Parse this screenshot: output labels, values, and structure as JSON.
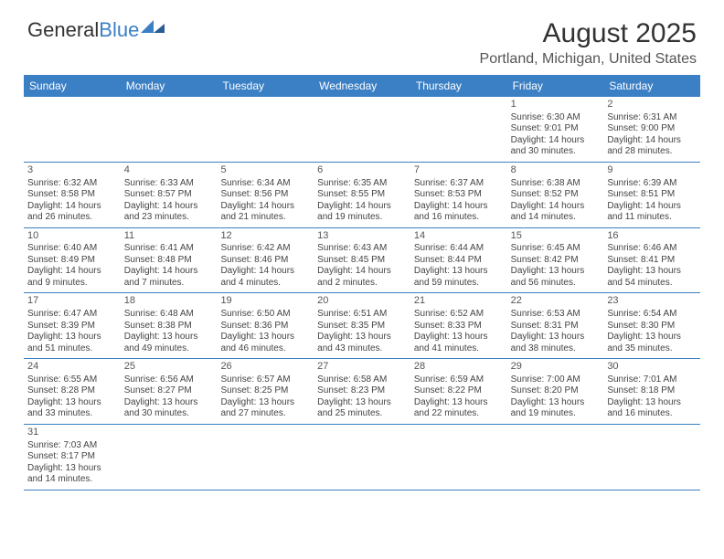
{
  "logo": {
    "general": "General",
    "blue": "Blue"
  },
  "title": "August 2025",
  "location": "Portland, Michigan, United States",
  "colors": {
    "header_bg": "#3b7fc4",
    "header_text": "#ffffff",
    "border": "#3b7fc4",
    "text": "#444444",
    "title_text": "#333333"
  },
  "weekdays": [
    "Sunday",
    "Monday",
    "Tuesday",
    "Wednesday",
    "Thursday",
    "Friday",
    "Saturday"
  ],
  "weeks": [
    [
      null,
      null,
      null,
      null,
      null,
      {
        "d": "1",
        "sr": "Sunrise: 6:30 AM",
        "ss": "Sunset: 9:01 PM",
        "dl1": "Daylight: 14 hours",
        "dl2": "and 30 minutes."
      },
      {
        "d": "2",
        "sr": "Sunrise: 6:31 AM",
        "ss": "Sunset: 9:00 PM",
        "dl1": "Daylight: 14 hours",
        "dl2": "and 28 minutes."
      }
    ],
    [
      {
        "d": "3",
        "sr": "Sunrise: 6:32 AM",
        "ss": "Sunset: 8:58 PM",
        "dl1": "Daylight: 14 hours",
        "dl2": "and 26 minutes."
      },
      {
        "d": "4",
        "sr": "Sunrise: 6:33 AM",
        "ss": "Sunset: 8:57 PM",
        "dl1": "Daylight: 14 hours",
        "dl2": "and 23 minutes."
      },
      {
        "d": "5",
        "sr": "Sunrise: 6:34 AM",
        "ss": "Sunset: 8:56 PM",
        "dl1": "Daylight: 14 hours",
        "dl2": "and 21 minutes."
      },
      {
        "d": "6",
        "sr": "Sunrise: 6:35 AM",
        "ss": "Sunset: 8:55 PM",
        "dl1": "Daylight: 14 hours",
        "dl2": "and 19 minutes."
      },
      {
        "d": "7",
        "sr": "Sunrise: 6:37 AM",
        "ss": "Sunset: 8:53 PM",
        "dl1": "Daylight: 14 hours",
        "dl2": "and 16 minutes."
      },
      {
        "d": "8",
        "sr": "Sunrise: 6:38 AM",
        "ss": "Sunset: 8:52 PM",
        "dl1": "Daylight: 14 hours",
        "dl2": "and 14 minutes."
      },
      {
        "d": "9",
        "sr": "Sunrise: 6:39 AM",
        "ss": "Sunset: 8:51 PM",
        "dl1": "Daylight: 14 hours",
        "dl2": "and 11 minutes."
      }
    ],
    [
      {
        "d": "10",
        "sr": "Sunrise: 6:40 AM",
        "ss": "Sunset: 8:49 PM",
        "dl1": "Daylight: 14 hours",
        "dl2": "and 9 minutes."
      },
      {
        "d": "11",
        "sr": "Sunrise: 6:41 AM",
        "ss": "Sunset: 8:48 PM",
        "dl1": "Daylight: 14 hours",
        "dl2": "and 7 minutes."
      },
      {
        "d": "12",
        "sr": "Sunrise: 6:42 AM",
        "ss": "Sunset: 8:46 PM",
        "dl1": "Daylight: 14 hours",
        "dl2": "and 4 minutes."
      },
      {
        "d": "13",
        "sr": "Sunrise: 6:43 AM",
        "ss": "Sunset: 8:45 PM",
        "dl1": "Daylight: 14 hours",
        "dl2": "and 2 minutes."
      },
      {
        "d": "14",
        "sr": "Sunrise: 6:44 AM",
        "ss": "Sunset: 8:44 PM",
        "dl1": "Daylight: 13 hours",
        "dl2": "and 59 minutes."
      },
      {
        "d": "15",
        "sr": "Sunrise: 6:45 AM",
        "ss": "Sunset: 8:42 PM",
        "dl1": "Daylight: 13 hours",
        "dl2": "and 56 minutes."
      },
      {
        "d": "16",
        "sr": "Sunrise: 6:46 AM",
        "ss": "Sunset: 8:41 PM",
        "dl1": "Daylight: 13 hours",
        "dl2": "and 54 minutes."
      }
    ],
    [
      {
        "d": "17",
        "sr": "Sunrise: 6:47 AM",
        "ss": "Sunset: 8:39 PM",
        "dl1": "Daylight: 13 hours",
        "dl2": "and 51 minutes."
      },
      {
        "d": "18",
        "sr": "Sunrise: 6:48 AM",
        "ss": "Sunset: 8:38 PM",
        "dl1": "Daylight: 13 hours",
        "dl2": "and 49 minutes."
      },
      {
        "d": "19",
        "sr": "Sunrise: 6:50 AM",
        "ss": "Sunset: 8:36 PM",
        "dl1": "Daylight: 13 hours",
        "dl2": "and 46 minutes."
      },
      {
        "d": "20",
        "sr": "Sunrise: 6:51 AM",
        "ss": "Sunset: 8:35 PM",
        "dl1": "Daylight: 13 hours",
        "dl2": "and 43 minutes."
      },
      {
        "d": "21",
        "sr": "Sunrise: 6:52 AM",
        "ss": "Sunset: 8:33 PM",
        "dl1": "Daylight: 13 hours",
        "dl2": "and 41 minutes."
      },
      {
        "d": "22",
        "sr": "Sunrise: 6:53 AM",
        "ss": "Sunset: 8:31 PM",
        "dl1": "Daylight: 13 hours",
        "dl2": "and 38 minutes."
      },
      {
        "d": "23",
        "sr": "Sunrise: 6:54 AM",
        "ss": "Sunset: 8:30 PM",
        "dl1": "Daylight: 13 hours",
        "dl2": "and 35 minutes."
      }
    ],
    [
      {
        "d": "24",
        "sr": "Sunrise: 6:55 AM",
        "ss": "Sunset: 8:28 PM",
        "dl1": "Daylight: 13 hours",
        "dl2": "and 33 minutes."
      },
      {
        "d": "25",
        "sr": "Sunrise: 6:56 AM",
        "ss": "Sunset: 8:27 PM",
        "dl1": "Daylight: 13 hours",
        "dl2": "and 30 minutes."
      },
      {
        "d": "26",
        "sr": "Sunrise: 6:57 AM",
        "ss": "Sunset: 8:25 PM",
        "dl1": "Daylight: 13 hours",
        "dl2": "and 27 minutes."
      },
      {
        "d": "27",
        "sr": "Sunrise: 6:58 AM",
        "ss": "Sunset: 8:23 PM",
        "dl1": "Daylight: 13 hours",
        "dl2": "and 25 minutes."
      },
      {
        "d": "28",
        "sr": "Sunrise: 6:59 AM",
        "ss": "Sunset: 8:22 PM",
        "dl1": "Daylight: 13 hours",
        "dl2": "and 22 minutes."
      },
      {
        "d": "29",
        "sr": "Sunrise: 7:00 AM",
        "ss": "Sunset: 8:20 PM",
        "dl1": "Daylight: 13 hours",
        "dl2": "and 19 minutes."
      },
      {
        "d": "30",
        "sr": "Sunrise: 7:01 AM",
        "ss": "Sunset: 8:18 PM",
        "dl1": "Daylight: 13 hours",
        "dl2": "and 16 minutes."
      }
    ],
    [
      {
        "d": "31",
        "sr": "Sunrise: 7:03 AM",
        "ss": "Sunset: 8:17 PM",
        "dl1": "Daylight: 13 hours",
        "dl2": "and 14 minutes."
      },
      null,
      null,
      null,
      null,
      null,
      null
    ]
  ]
}
